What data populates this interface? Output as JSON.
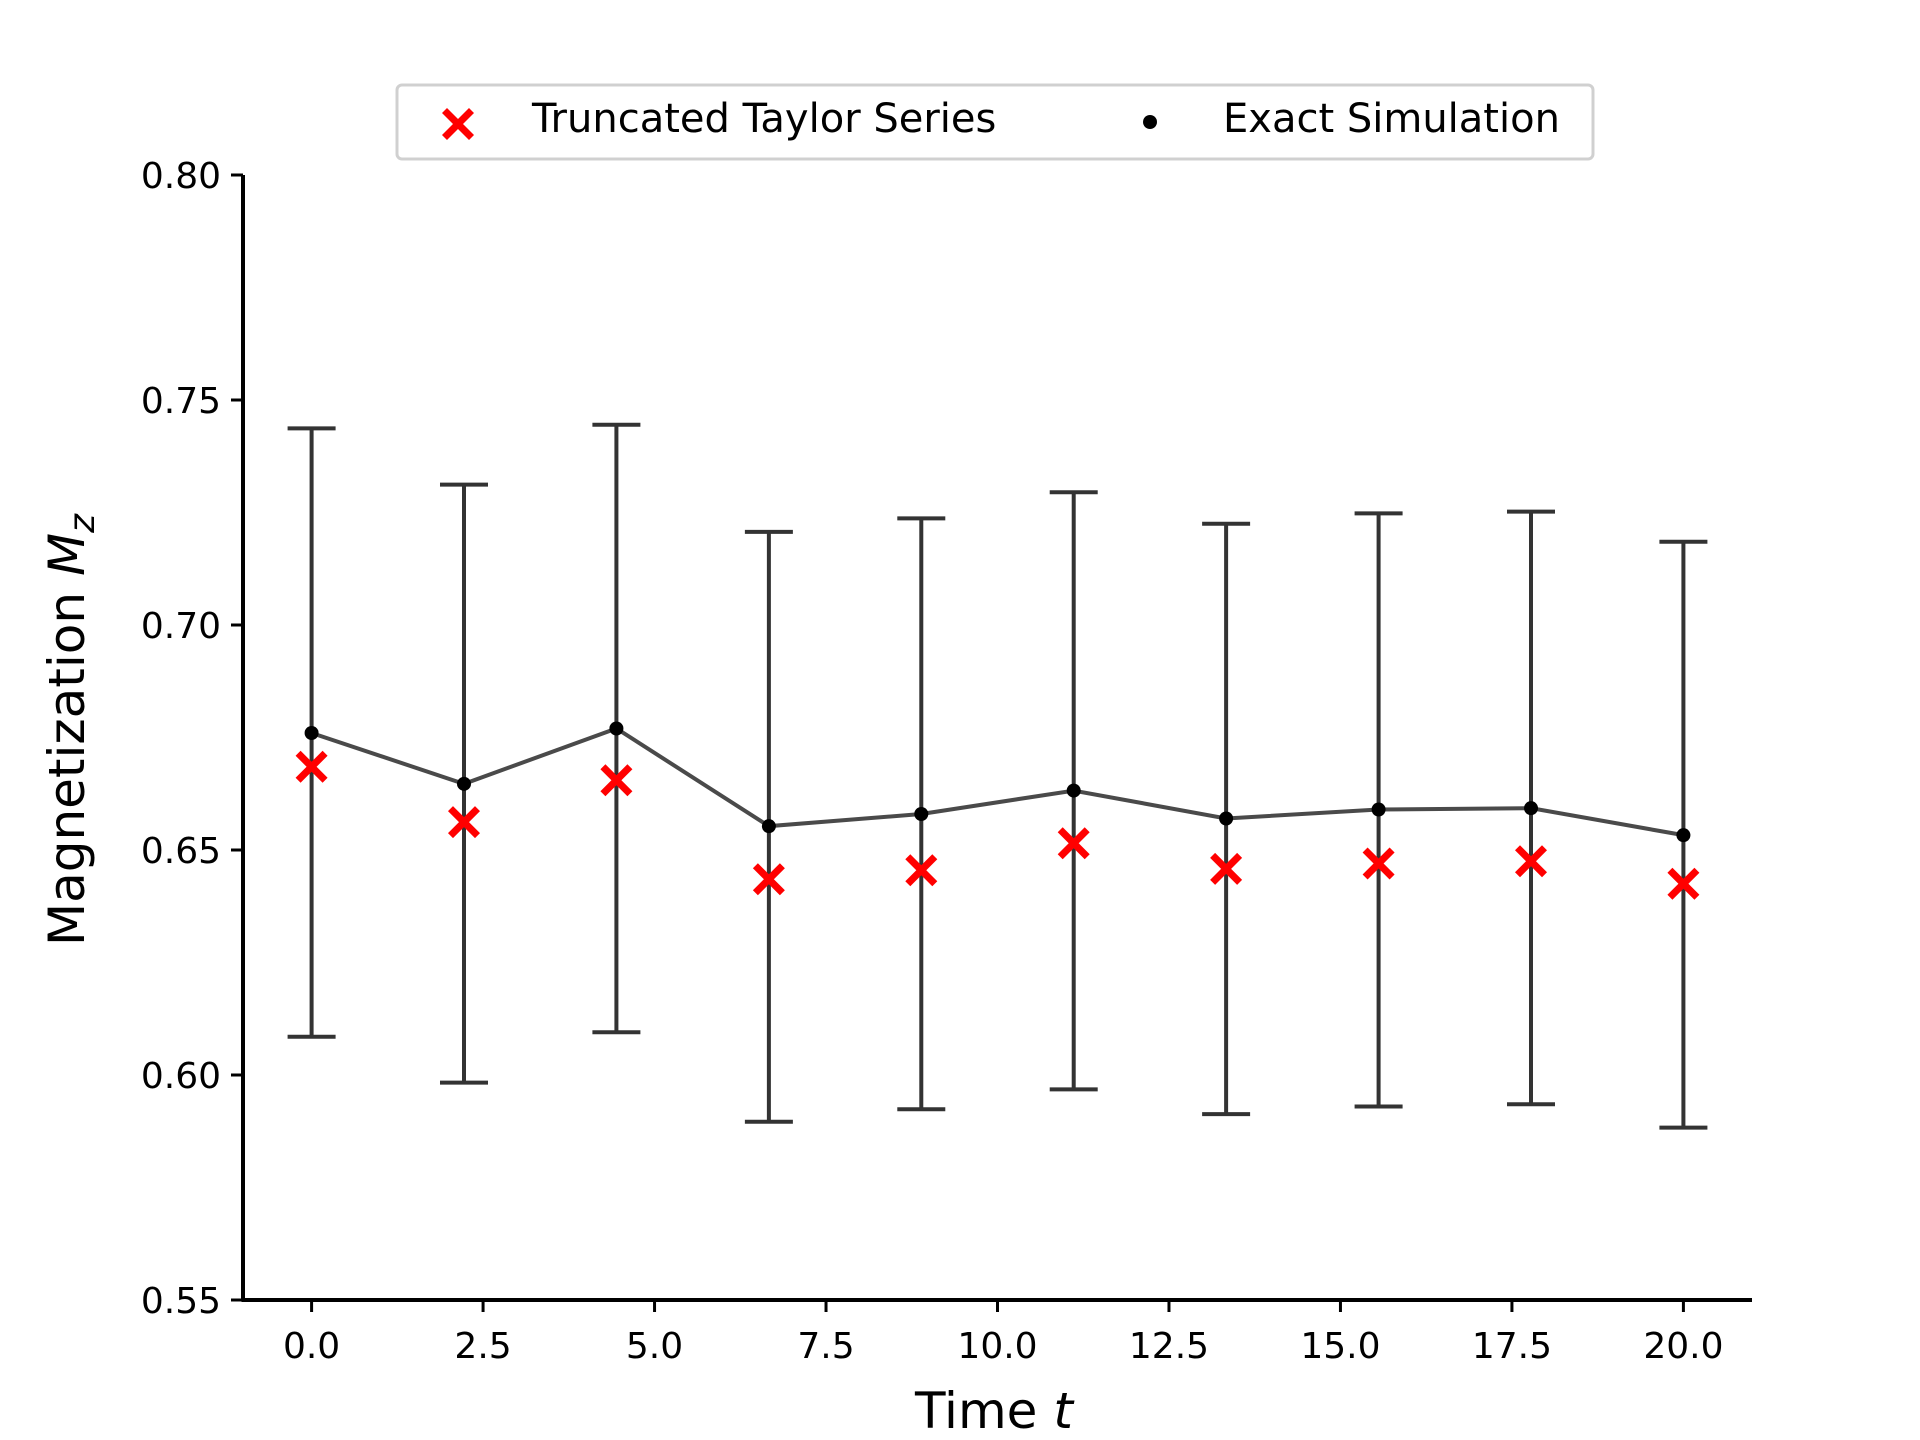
{
  "chart_data": {
    "type": "scatter",
    "xlabel": "Time",
    "xlabel_var": "t",
    "ylabel": "Magnetization",
    "ylabel_var": "M",
    "ylabel_sub": "z",
    "xlim": [
      -1.0,
      21.0
    ],
    "ylim": [
      0.55,
      0.8
    ],
    "xticks": [
      0.0,
      2.5,
      5.0,
      7.5,
      10.0,
      12.5,
      15.0,
      17.5,
      20.0
    ],
    "xtick_labels": [
      "0.0",
      "2.5",
      "5.0",
      "7.5",
      "10.0",
      "12.5",
      "15.0",
      "17.5",
      "20.0"
    ],
    "yticks": [
      0.55,
      0.6,
      0.65,
      0.7,
      0.75,
      0.8
    ],
    "ytick_labels": [
      "0.55",
      "0.60",
      "0.65",
      "0.70",
      "0.75",
      "0.80"
    ],
    "grid": false,
    "legend_position": "top-center",
    "x": [
      0.0,
      2.222,
      4.444,
      6.667,
      8.889,
      11.111,
      13.333,
      15.556,
      17.778,
      20.0
    ],
    "series": [
      {
        "name": "Truncated Taylor Series",
        "marker": "x-filled",
        "color": "#ff0000",
        "values": [
          0.6685,
          0.6562,
          0.6655,
          0.6435,
          0.6455,
          0.6515,
          0.6458,
          0.647,
          0.6475,
          0.6425
        ]
      },
      {
        "name": "Exact Simulation",
        "marker": "dot-line",
        "color": "#000000",
        "line_color": "#4a4a4a",
        "values": [
          0.676,
          0.6647,
          0.677,
          0.6553,
          0.658,
          0.6632,
          0.657,
          0.659,
          0.6593,
          0.6533
        ],
        "error_low": [
          0.6085,
          0.5983,
          0.6095,
          0.5896,
          0.5924,
          0.5968,
          0.5913,
          0.593,
          0.5935,
          0.5883
        ],
        "error_high": [
          0.7437,
          0.7312,
          0.7445,
          0.7207,
          0.7237,
          0.7295,
          0.7225,
          0.7248,
          0.7252,
          0.7185
        ]
      }
    ]
  }
}
